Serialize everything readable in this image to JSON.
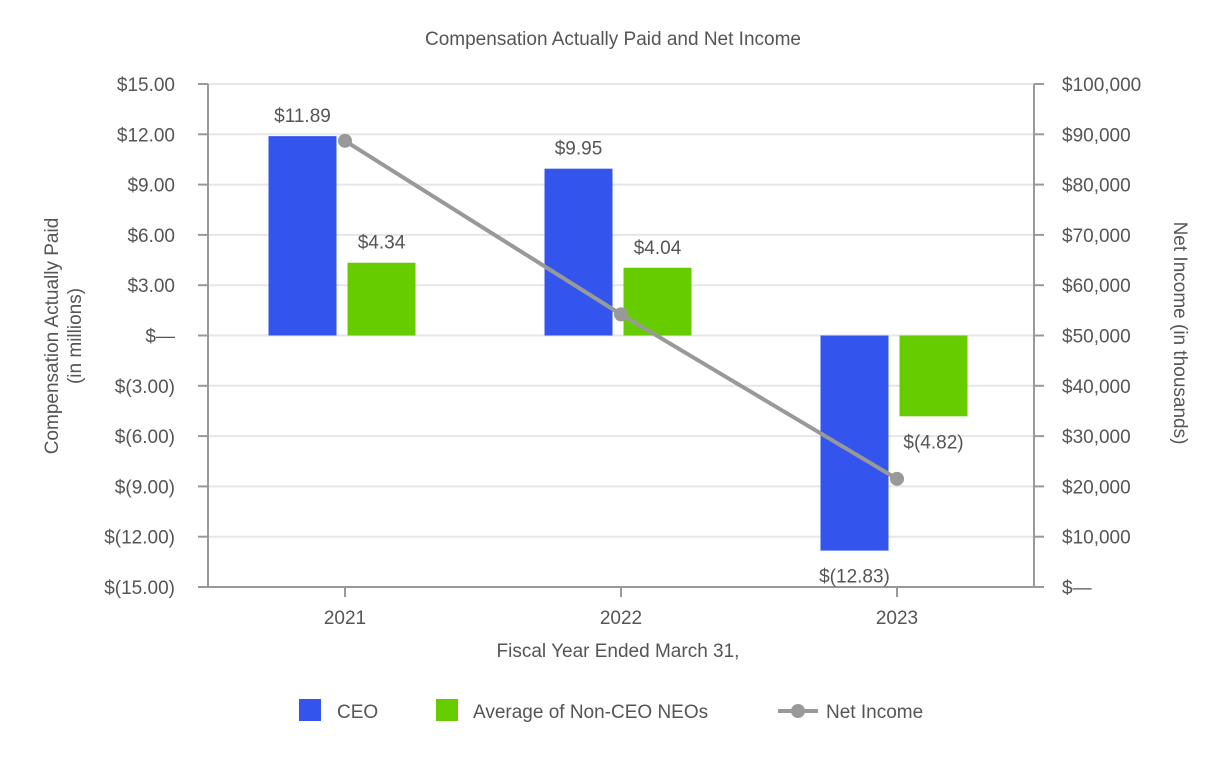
{
  "chart_data": {
    "type": "bar",
    "title": "Compensation Actually Paid and Net Income",
    "xlabel": "Fiscal Year Ended March 31,",
    "ylabel_left": [
      "Compensation Actually Paid",
      "(in millions)"
    ],
    "ylabel_right": "Net Income (in thousands)",
    "categories": [
      "2021",
      "2022",
      "2023"
    ],
    "ylim_left": [
      -15,
      15
    ],
    "ylim_right": [
      0,
      100000
    ],
    "left_ticks": [
      {
        "value": 15,
        "label": "$15.00"
      },
      {
        "value": 12,
        "label": "$12.00"
      },
      {
        "value": 9,
        "label": "$9.00"
      },
      {
        "value": 6,
        "label": "$6.00"
      },
      {
        "value": 3,
        "label": "$3.00"
      },
      {
        "value": 0,
        "label": "$—"
      },
      {
        "value": -3,
        "label": "$(3.00)"
      },
      {
        "value": -6,
        "label": "$(6.00)"
      },
      {
        "value": -9,
        "label": "$(9.00)"
      },
      {
        "value": -12,
        "label": "$(12.00)"
      },
      {
        "value": -15,
        "label": "$(15.00)"
      }
    ],
    "right_ticks": [
      {
        "value": 100000,
        "label": "$100,000"
      },
      {
        "value": 90000,
        "label": "$90,000"
      },
      {
        "value": 80000,
        "label": "$80,000"
      },
      {
        "value": 70000,
        "label": "$70,000"
      },
      {
        "value": 60000,
        "label": "$60,000"
      },
      {
        "value": 50000,
        "label": "$50,000"
      },
      {
        "value": 40000,
        "label": "$40,000"
      },
      {
        "value": 30000,
        "label": "$30,000"
      },
      {
        "value": 20000,
        "label": "$20,000"
      },
      {
        "value": 10000,
        "label": "$10,000"
      },
      {
        "value": 0,
        "label": "$—"
      }
    ],
    "series": [
      {
        "name": "CEO",
        "type": "bar",
        "axis": "left",
        "color": "#3355ee",
        "values": [
          11.89,
          9.95,
          -12.83
        ],
        "labels": [
          "$11.89",
          "$9.95",
          "$(12.83)"
        ]
      },
      {
        "name": "Average of Non-CEO NEOs",
        "type": "bar",
        "axis": "left",
        "color": "#66cc00",
        "values": [
          4.34,
          4.04,
          -4.82
        ],
        "labels": [
          "$4.34",
          "$4.04",
          "$(4.82)"
        ]
      },
      {
        "name": "Net Income",
        "type": "line",
        "axis": "right",
        "color": "#999999",
        "values": [
          88700,
          54200,
          21500
        ]
      }
    ],
    "legend": [
      {
        "name": "CEO",
        "marker": "square",
        "color": "#3355ee"
      },
      {
        "name": "Average of Non-CEO NEOs",
        "marker": "square",
        "color": "#66cc00"
      },
      {
        "name": "Net Income",
        "marker": "line-dot",
        "color": "#999999"
      }
    ],
    "grid": true,
    "legend_position": "bottom"
  }
}
